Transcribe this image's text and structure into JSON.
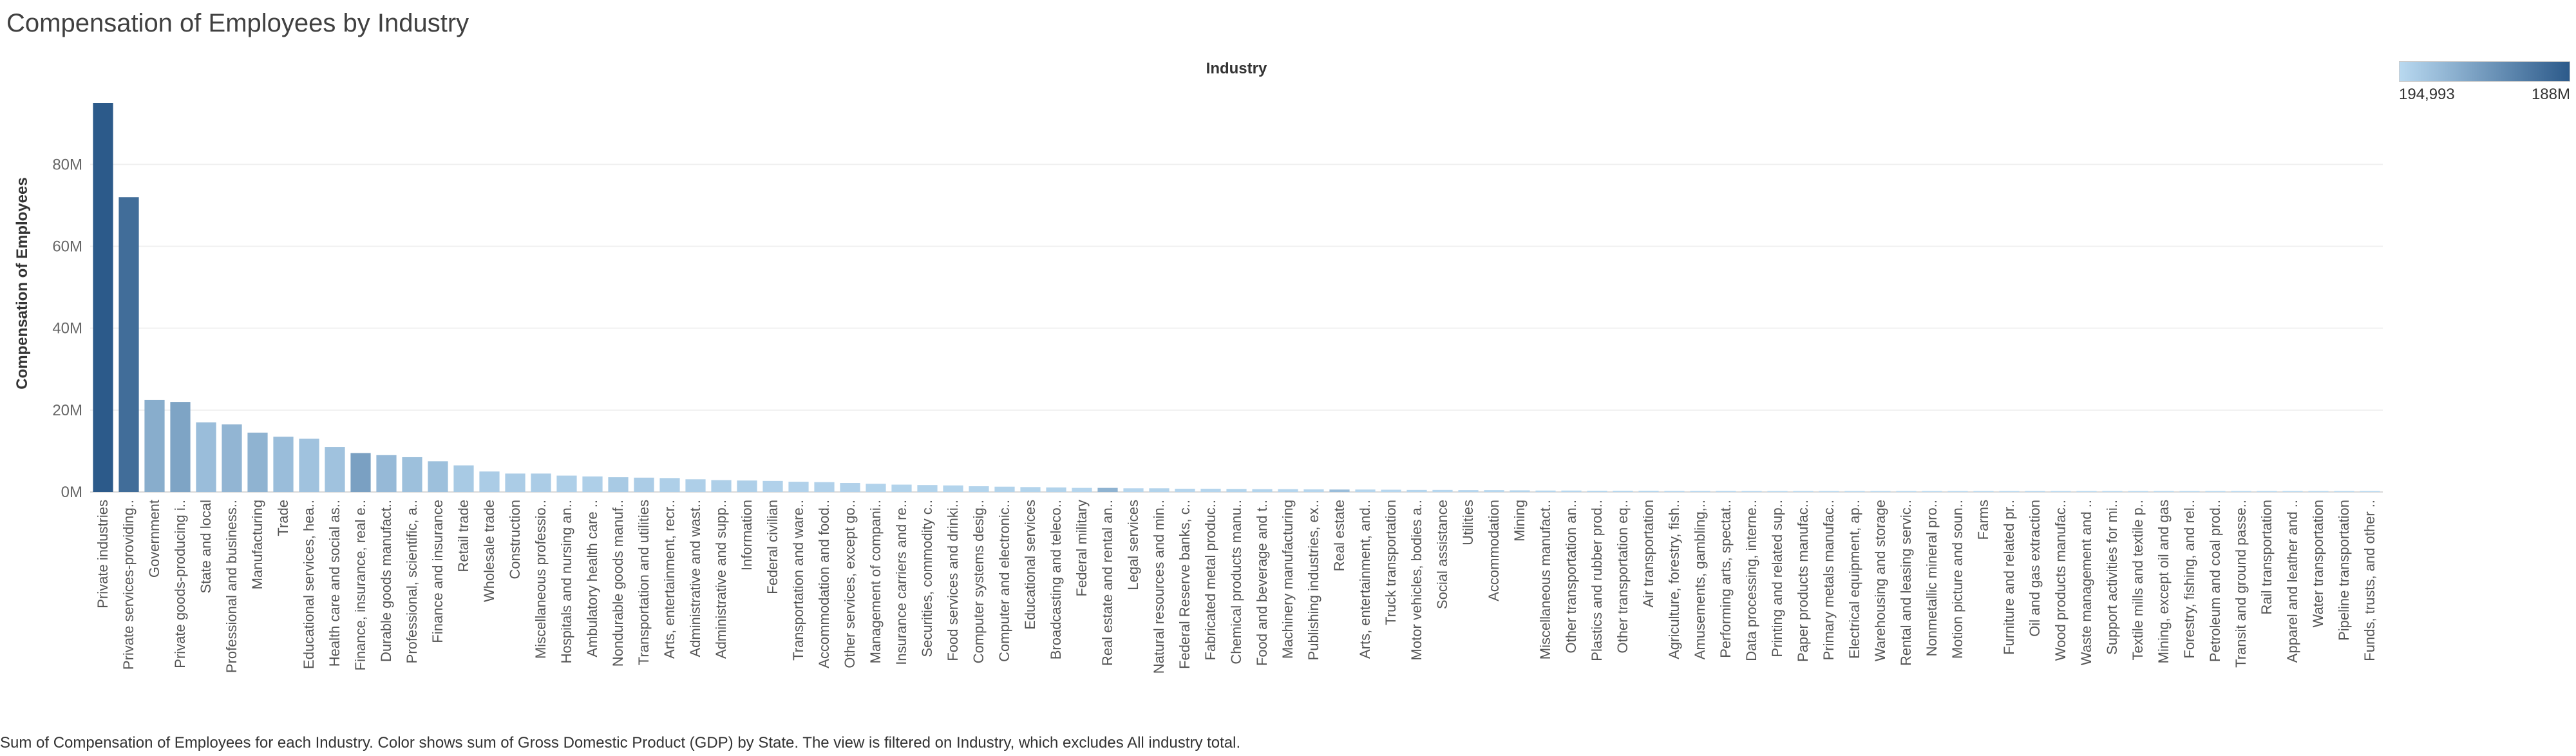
{
  "title": "Compensation of Employees by Industry",
  "caption": "Sum of Compensation of Employees for each Industry.  Color shows sum of Gross Domestic Product (GDP) by State. The view is filtered on Industry, which excludes All industry total.",
  "legend": {
    "min_label": "194,993",
    "max_label": "188M",
    "color_low": "#b9d9f0",
    "color_high": "#2c5a8a"
  },
  "chart_data": {
    "type": "bar",
    "title": "Compensation of Employees by Industry",
    "xlabel": "Industry",
    "ylabel": "Compensation of Employees",
    "ylim": [
      0,
      95
    ],
    "y_ticks": [
      0,
      20,
      40,
      60,
      80
    ],
    "y_tick_labels": [
      "0M",
      "20M",
      "40M",
      "60M",
      "80M"
    ],
    "grid": true,
    "legend_position": "top-right",
    "categories": [
      "Private industries",
      "Private services-providing..",
      "Government",
      "Private goods-producing i..",
      "State and local",
      "Professional and business..",
      "Manufacturing",
      "Trade",
      "Educational services, hea..",
      "Health care and social as..",
      "Finance, insurance, real e..",
      "Durable goods manufact..",
      "Professional, scientific, a..",
      "Finance and insurance",
      "Retail trade",
      "Wholesale trade",
      "Construction",
      "Miscellaneous professio..",
      "Hospitals and nursing an..",
      "Ambulatory health care ..",
      "Nondurable goods manuf..",
      "Transportation and utilities",
      "Arts, entertainment, recr..",
      "Administrative and wast..",
      "Administrative and supp..",
      "Information",
      "Federal civilian",
      "Transportation and ware..",
      "Accommodation and food..",
      "Other services, except go..",
      "Management of compani..",
      "Insurance carriers and re..",
      "Securities, commodity c..",
      "Food services and drinki..",
      "Computer systems desig..",
      "Computer and electronic..",
      "Educational services",
      "Broadcasting and teleco..",
      "Federal military",
      "Real estate and rental an..",
      "Legal services",
      "Natural resources and min..",
      "Federal Reserve banks, c..",
      "Fabricated metal produc..",
      "Chemical products manu..",
      "Food and beverage and t..",
      "Machinery manufacturing",
      "Publishing industries, ex..",
      "Real estate",
      "Arts, entertainment, and..",
      "Truck transportation",
      "Motor vehicles, bodies a..",
      "Social assistance",
      "Utilities",
      "Accommodation",
      "Mining",
      "Miscellaneous manufact..",
      "Other transportation an..",
      "Plastics and rubber prod..",
      "Other transportation eq..",
      "Air transportation",
      "Agriculture, forestry, fish..",
      "Amusements, gambling,..",
      "Performing arts, spectat..",
      "Data processing, interne..",
      "Printing and related sup..",
      "Paper products manufac..",
      "Primary metals manufac..",
      "Electrical equipment, ap..",
      "Warehousing and storage",
      "Rental and leasing servic..",
      "Nonmetallic mineral pro..",
      "Motion picture and soun..",
      "Farms",
      "Furniture and related pr..",
      "Oil and gas extraction",
      "Wood products manufac..",
      "Waste management and ..",
      "Support activities for mi..",
      "Textile mills and textile p..",
      "Mining, except oil and gas",
      "Forestry, fishing, and rel..",
      "Petroleum and coal prod..",
      "Transit and ground passe..",
      "Rail transportation",
      "Apparel and leather and ..",
      "Water transportation",
      "Pipeline transportation",
      "Funds, trusts, and other .."
    ],
    "values": [
      95,
      72,
      22.5,
      22,
      17,
      16.5,
      14.5,
      13.5,
      13,
      11,
      9.5,
      9,
      8.5,
      7.5,
      6.5,
      5,
      4.5,
      4.5,
      4,
      3.8,
      3.6,
      3.5,
      3.4,
      3.1,
      2.9,
      2.8,
      2.7,
      2.5,
      2.4,
      2.2,
      2.0,
      1.8,
      1.7,
      1.6,
      1.4,
      1.3,
      1.2,
      1.1,
      1.0,
      1.0,
      0.9,
      0.9,
      0.8,
      0.8,
      0.75,
      0.7,
      0.7,
      0.65,
      0.6,
      0.6,
      0.55,
      0.5,
      0.5,
      0.45,
      0.45,
      0.4,
      0.35,
      0.35,
      0.3,
      0.3,
      0.3,
      0.25,
      0.25,
      0.25,
      0.2,
      0.2,
      0.2,
      0.2,
      0.2,
      0.15,
      0.15,
      0.15,
      0.15,
      0.1,
      0.1,
      0.1,
      0.1,
      0.1,
      0.1,
      0.08,
      0.08,
      0.06,
      0.06,
      0.06,
      0.05,
      0.05,
      0.04,
      0.03,
      0.02
    ],
    "color_values": [
      1.0,
      0.85,
      0.35,
      0.42,
      0.22,
      0.28,
      0.3,
      0.22,
      0.18,
      0.18,
      0.45,
      0.25,
      0.2,
      0.2,
      0.12,
      0.1,
      0.1,
      0.1,
      0.08,
      0.08,
      0.12,
      0.1,
      0.08,
      0.08,
      0.08,
      0.08,
      0.06,
      0.06,
      0.06,
      0.06,
      0.05,
      0.05,
      0.05,
      0.04,
      0.04,
      0.05,
      0.04,
      0.05,
      0.03,
      0.3,
      0.03,
      0.05,
      0.03,
      0.03,
      0.04,
      0.04,
      0.03,
      0.03,
      0.22,
      0.03,
      0.02,
      0.03,
      0.02,
      0.03,
      0.02,
      0.04,
      0.02,
      0.02,
      0.02,
      0.02,
      0.02,
      0.02,
      0.02,
      0.02,
      0.02,
      0.01,
      0.01,
      0.01,
      0.01,
      0.01,
      0.01,
      0.01,
      0.01,
      0.01,
      0.01,
      0.02,
      0.01,
      0.01,
      0.01,
      0.01,
      0.01,
      0.01,
      0.01,
      0.01,
      0.01,
      0.01,
      0.01,
      0.01,
      0.01
    ]
  }
}
